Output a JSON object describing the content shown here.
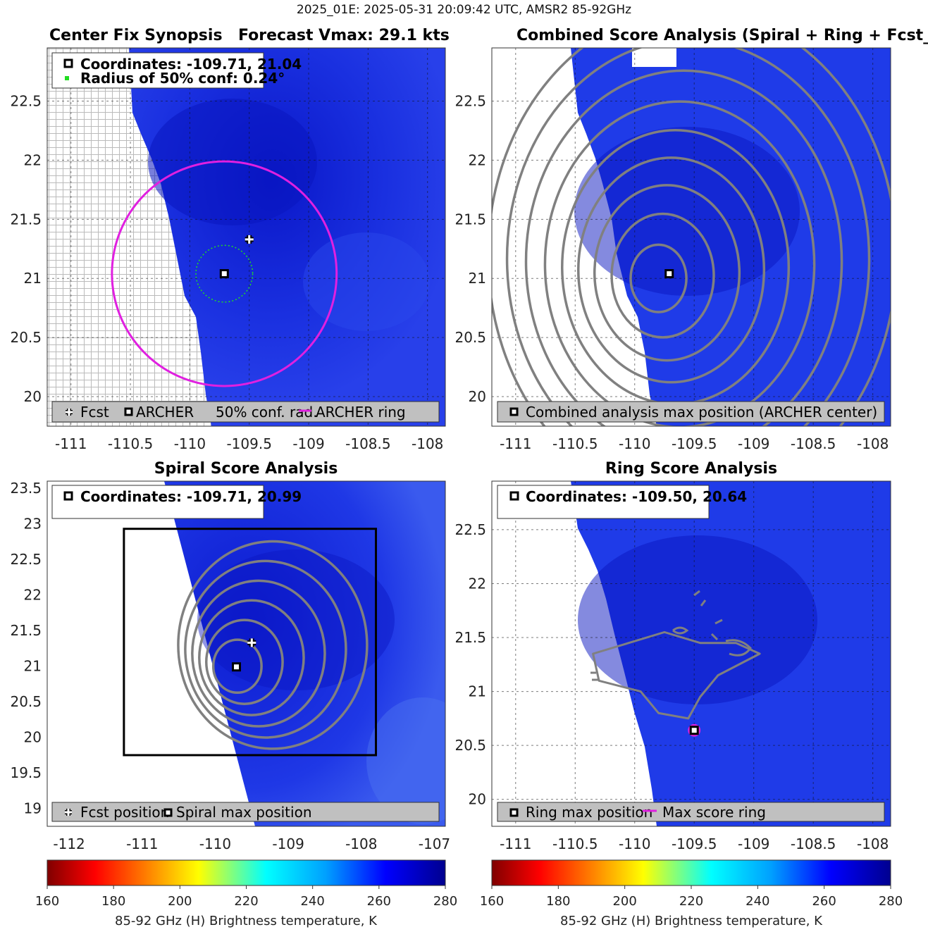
{
  "suptitle": "2025_01E: 2025-05-31 20:09:42 UTC, AMSR2 85-92GHz",
  "colors": {
    "fcst_bg": "#1f3be8",
    "panel_bg": "#1c34e6",
    "deep_blue": "#0d1fd4",
    "magenta": "#e020e0",
    "contour": "#808080",
    "green_dot": "#22dd22",
    "legend_bg": "#c0c0c0"
  },
  "panels": {
    "p1": {
      "title_left": "Center Fix Synopsis",
      "title_right": "Forecast Vmax: 29.1 kts",
      "info_line1": "Coordinates: -109.71, 21.04",
      "info_line2": "Radius of 50% conf: 0.24°",
      "legend": {
        "fcst": "Fcst",
        "archer": "ARCHER",
        "conf": "50% conf. rad.",
        "ring": "ARCHER ring"
      }
    },
    "p2": {
      "title": "Combined Score Analysis (Spiral + Ring + Fcst_Pe",
      "legend": {
        "max": "Combined analysis max position (ARCHER center)"
      }
    },
    "p3": {
      "title": "Spiral Score Analysis",
      "info_line1": "Coordinates: -109.71, 20.99",
      "legend": {
        "fcst": "Fcst position",
        "spiral": "Spiral max position"
      }
    },
    "p4": {
      "title": "Ring Score Analysis",
      "info_line1": "Coordinates: -109.50, 20.64",
      "legend": {
        "ring_max": "Ring max position",
        "ring": "Max score ring"
      }
    }
  },
  "colorbars": {
    "label": "85-92 GHz (H) Brightness temperature, K",
    "ticks": [
      "160",
      "180",
      "200",
      "220",
      "240",
      "260",
      "280"
    ]
  },
  "chart_data": [
    {
      "id": "p1",
      "type": "heatmap",
      "title": "Center Fix Synopsis   Forecast Vmax: 29.1 kts",
      "xlim": [
        -111.2,
        -107.85
      ],
      "ylim": [
        19.75,
        22.95
      ],
      "xticks": [
        -111,
        -110.5,
        -110,
        -109.5,
        -109,
        -108.5,
        -108
      ],
      "yticks": [
        20,
        20.5,
        21,
        21.5,
        22,
        22.5
      ],
      "x_tick_labels": [
        "-111",
        "-110.5",
        "-110",
        "-109.5",
        "-109",
        "-108.5",
        "-108"
      ],
      "y_tick_labels": [
        "20",
        "20.5",
        "21",
        "21.5",
        "22",
        "22.5"
      ],
      "archer_center": [
        -109.71,
        21.04
      ],
      "forecast_position": [
        -109.5,
        21.33
      ],
      "conf_radius_deg": 0.24,
      "archer_ring_radius_deg": 0.95,
      "swath_edge": [
        [
          -110.5,
          22.95
        ],
        [
          -110.4,
          22.3
        ],
        [
          -110.2,
          21.8
        ],
        [
          -110.05,
          21.3
        ],
        [
          -109.95,
          20.8
        ],
        [
          -109.85,
          20.3
        ],
        [
          -109.8,
          19.75
        ]
      ],
      "colorbar_range": [
        160,
        280
      ]
    },
    {
      "id": "p2",
      "type": "heatmap",
      "title": "Combined Score Analysis (Spiral + Ring + Fcst_Pe",
      "xlim": [
        -111.2,
        -107.85
      ],
      "ylim": [
        19.75,
        22.95
      ],
      "xticks": [
        -111,
        -110.5,
        -110,
        -109.5,
        -109,
        -108.5,
        -108
      ],
      "yticks": [
        20,
        20.5,
        21,
        21.5,
        22,
        22.5
      ],
      "x_tick_labels": [
        "-111",
        "-110.5",
        "-110",
        "-109.5",
        "-109",
        "-108.5",
        "-108"
      ],
      "y_tick_labels": [
        "20",
        "20.5",
        "21",
        "21.5",
        "22",
        "22.5"
      ],
      "max_position": [
        -109.71,
        21.04
      ],
      "contour_center": [
        -109.8,
        21.0
      ],
      "contour_radii_deg": [
        0.3,
        0.55,
        0.78,
        1.0,
        1.22,
        1.45,
        1.7,
        1.95,
        2.2
      ],
      "swath_edge": [
        [
          -110.5,
          22.95
        ],
        [
          -110.4,
          22.3
        ],
        [
          -110.2,
          21.8
        ],
        [
          -110.05,
          21.3
        ],
        [
          -109.95,
          20.8
        ],
        [
          -109.85,
          20.3
        ],
        [
          -109.8,
          19.75
        ]
      ]
    },
    {
      "id": "p3",
      "type": "heatmap",
      "title": "Spiral Score Analysis",
      "xlim": [
        -112.3,
        -106.85
      ],
      "ylim": [
        18.75,
        23.6
      ],
      "xticks": [
        -112,
        -111,
        -110,
        -109,
        -108,
        -107
      ],
      "yticks": [
        19,
        19.5,
        20,
        20.5,
        21,
        21.5,
        22,
        22.5,
        23,
        23.5
      ],
      "x_tick_labels": [
        "-112",
        "-111",
        "-110",
        "-109",
        "-108",
        "-107"
      ],
      "y_tick_labels": [
        "19",
        "19.5",
        "20",
        "20.5",
        "21",
        "21.5",
        "22",
        "22.5",
        "23",
        "23.5"
      ],
      "spiral_max": [
        -109.71,
        20.99
      ],
      "forecast_position": [
        -109.5,
        21.33
      ],
      "search_box": {
        "x0": -111.25,
        "x1": -107.8,
        "y0": 19.75,
        "y1": 22.93
      },
      "contour_center": [
        -109.6,
        21.0
      ],
      "contour_radii_deg": [
        0.6,
        0.95,
        1.3,
        1.65,
        2.0,
        2.35
      ]
    },
    {
      "id": "p4",
      "type": "heatmap",
      "title": "Ring Score Analysis",
      "xlim": [
        -111.2,
        -107.85
      ],
      "ylim": [
        19.75,
        22.95
      ],
      "xticks": [
        -111,
        -110.5,
        -110,
        -109.5,
        -109,
        -108.5,
        -108
      ],
      "yticks": [
        20,
        20.5,
        21,
        21.5,
        22,
        22.5
      ],
      "x_tick_labels": [
        "-111",
        "-110.5",
        "-110",
        "-109.5",
        "-109",
        "-108.5",
        "-108"
      ],
      "y_tick_labels": [
        "20",
        "20.5",
        "21",
        "21.5",
        "22",
        "22.5"
      ],
      "ring_max": [
        -109.5,
        20.64
      ],
      "ring_radius_deg": 0.05,
      "contour_blob": [
        [
          -110.35,
          21.35
        ],
        [
          -110.05,
          21.45
        ],
        [
          -109.75,
          21.55
        ],
        [
          -109.45,
          21.45
        ],
        [
          -109.15,
          21.45
        ],
        [
          -108.95,
          21.35
        ],
        [
          -109.3,
          21.15
        ],
        [
          -109.45,
          20.95
        ],
        [
          -109.55,
          20.75
        ],
        [
          -109.8,
          20.8
        ],
        [
          -109.95,
          21.0
        ],
        [
          -110.3,
          21.1
        ]
      ]
    }
  ]
}
